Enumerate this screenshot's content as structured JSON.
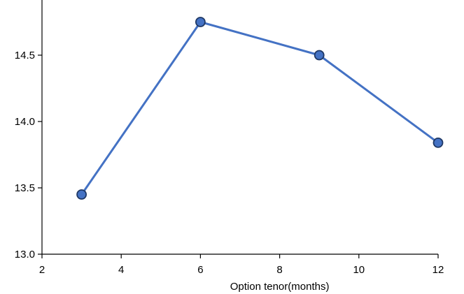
{
  "chart_data": {
    "type": "line",
    "title": "",
    "xlabel": "Option tenor(months)",
    "ylabel": "",
    "xlim": [
      2,
      12
    ],
    "ylim": [
      13.0,
      14.8
    ],
    "x_ticks": [
      2,
      4,
      6,
      8,
      10,
      12
    ],
    "y_ticks": [
      13.0,
      13.5,
      14.0,
      14.5
    ],
    "x_tick_labels": [
      "2",
      "4",
      "6",
      "8",
      "10",
      "12"
    ],
    "y_tick_labels": [
      "13.0",
      "13.5",
      "14.0",
      "14.5"
    ],
    "grid": false,
    "legend": "none",
    "series": [
      {
        "x": [
          3,
          6,
          9,
          12
        ],
        "y": [
          13.45,
          14.75,
          14.5,
          13.84
        ],
        "line_color": "#4472c4",
        "marker_fill": "#4472c4",
        "marker_stroke": "#1f3864"
      }
    ]
  }
}
